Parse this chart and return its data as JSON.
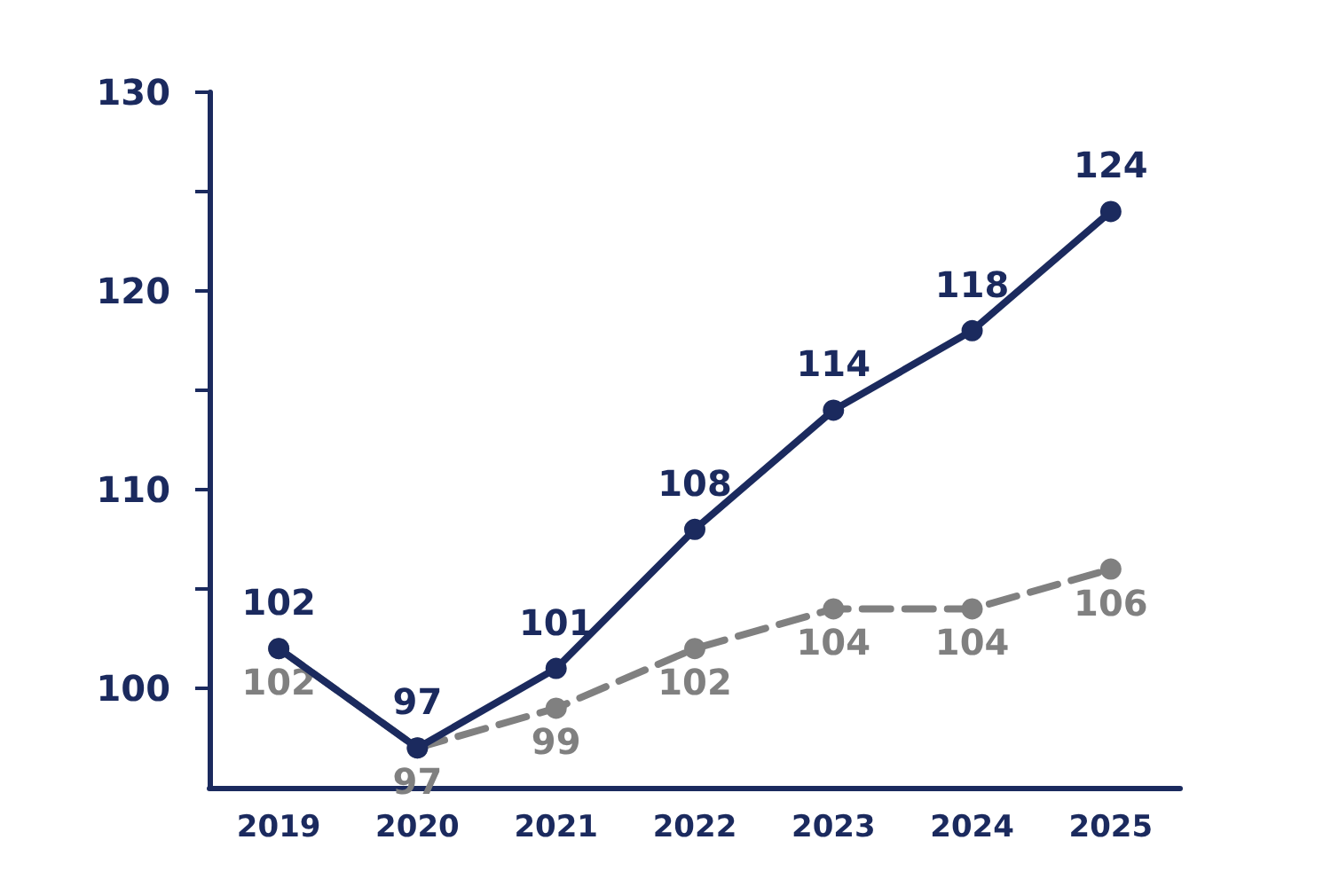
{
  "chart_data": {
    "type": "line",
    "categories": [
      "2019",
      "2020",
      "2021",
      "2022",
      "2023",
      "2024",
      "2025"
    ],
    "series": [
      {
        "color": "#1b2a5e",
        "line_style": "solid",
        "values": [
          102,
          97,
          101,
          108,
          114,
          118,
          124
        ]
      },
      {
        "color": "#808080",
        "line_style": "dashed",
        "values": [
          102,
          97,
          99,
          102,
          104,
          104,
          106
        ]
      }
    ],
    "ylim": [
      95,
      130
    ],
    "yticks": [
      100,
      {
        "value": 105,
        "label": null
      },
      110,
      {
        "value": 115,
        "label": null
      },
      120,
      {
        "value": 125,
        "label": null
      },
      130
    ],
    "grid": false,
    "marker": "circle",
    "data_labels": true
  }
}
